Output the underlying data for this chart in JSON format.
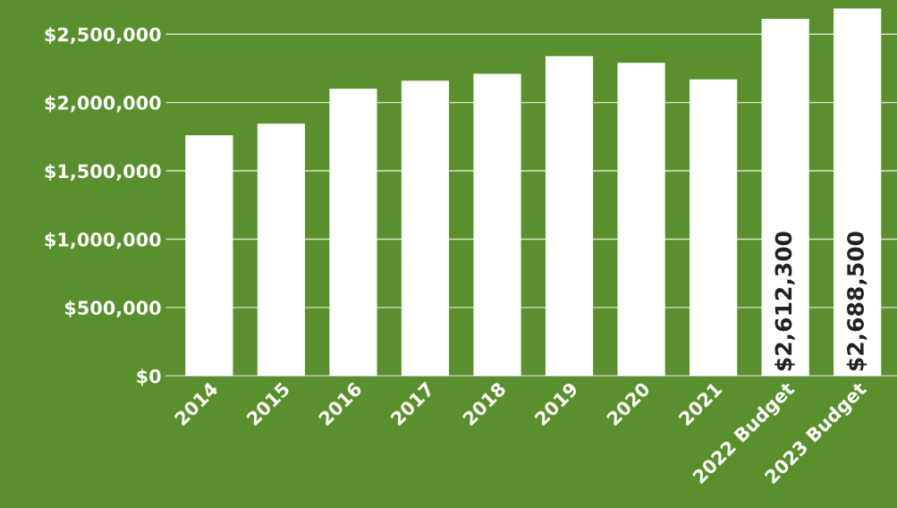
{
  "chart_data": {
    "type": "bar",
    "categories": [
      "2014",
      "2015",
      "2016",
      "2017",
      "2018",
      "2019",
      "2020",
      "2021",
      "2022 Budget",
      "2023 Budget"
    ],
    "values": [
      1760000,
      1845000,
      2100000,
      2160000,
      2210000,
      2340000,
      2290000,
      2170000,
      2612300,
      2688500
    ],
    "value_labels": [
      null,
      null,
      null,
      null,
      null,
      null,
      null,
      null,
      "$2,612,300",
      "$2,688,500"
    ],
    "color": "#ffffff",
    "ylim": [
      0,
      2750000
    ],
    "yticks": [
      {
        "value": 0,
        "label": "$0"
      },
      {
        "value": 500000,
        "label": "$500,000"
      },
      {
        "value": 1000000,
        "label": "$1,000,000"
      },
      {
        "value": 1500000,
        "label": "$1,500,000"
      },
      {
        "value": 2000000,
        "label": "$2,000,000"
      },
      {
        "value": 2500000,
        "label": "$2,500,000"
      }
    ],
    "grid": "y",
    "legend": false
  }
}
